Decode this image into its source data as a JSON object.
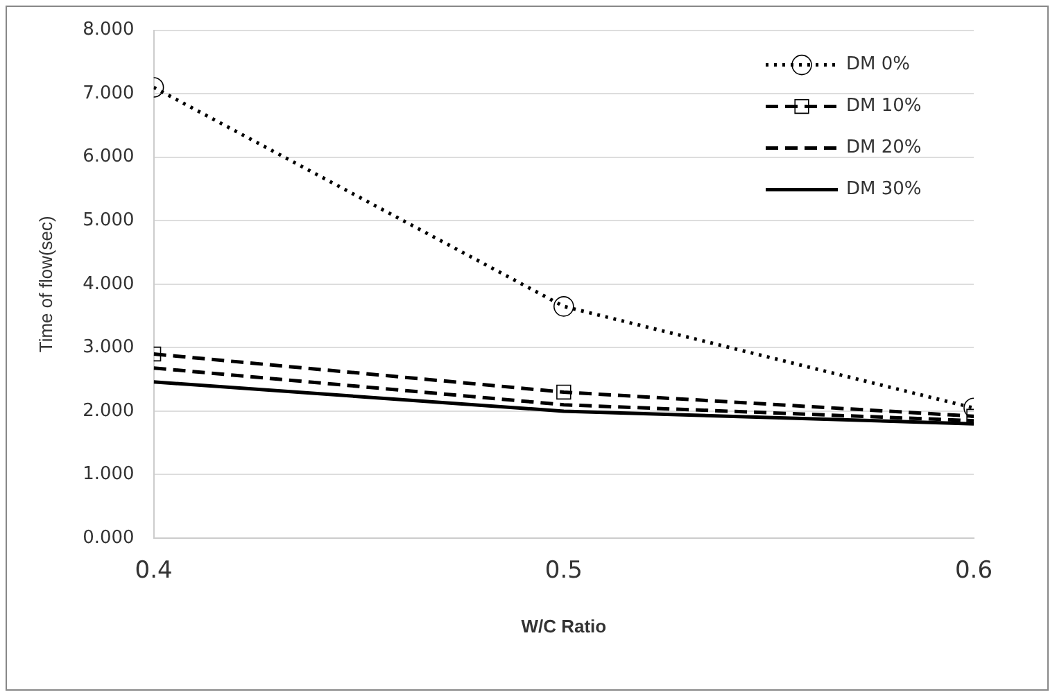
{
  "chart_data": {
    "type": "line",
    "xlabel": "W/C Ratio",
    "ylabel": "Time of flow(sec)",
    "x": [
      0.4,
      0.5,
      0.6
    ],
    "xlim": [
      0.4,
      0.6
    ],
    "xticks": [
      0.4,
      0.5,
      0.6
    ],
    "ylim": [
      0,
      8
    ],
    "yticks": [
      {
        "value": 0,
        "label": "0.000"
      },
      {
        "value": 1,
        "label": "1.000"
      },
      {
        "value": 2,
        "label": "2.000"
      },
      {
        "value": 3,
        "label": "3.000"
      },
      {
        "value": 4,
        "label": "4.000"
      },
      {
        "value": 5,
        "label": "5.000"
      },
      {
        "value": 6,
        "label": "6.000"
      },
      {
        "value": 7,
        "label": "7.000"
      },
      {
        "value": 8,
        "label": "8.000"
      }
    ],
    "grid": "y",
    "legend": "top right",
    "series": [
      {
        "name": "DM 0%",
        "color": "#000000",
        "values": [
          7.1,
          3.65,
          2.05
        ],
        "line_style": "dotted",
        "marker": "circle"
      },
      {
        "name": "DM 10%",
        "color": "#000000",
        "values": [
          2.9,
          2.3,
          1.92
        ],
        "line_style": "dashed",
        "marker": "square"
      },
      {
        "name": "DM 20%",
        "color": "#000000",
        "values": [
          2.68,
          2.1,
          1.85
        ],
        "line_style": "dashed",
        "marker": "none"
      },
      {
        "name": "DM 30%",
        "color": "#000000",
        "values": [
          2.46,
          2.0,
          1.8
        ],
        "line_style": "solid",
        "marker": "none"
      }
    ]
  }
}
